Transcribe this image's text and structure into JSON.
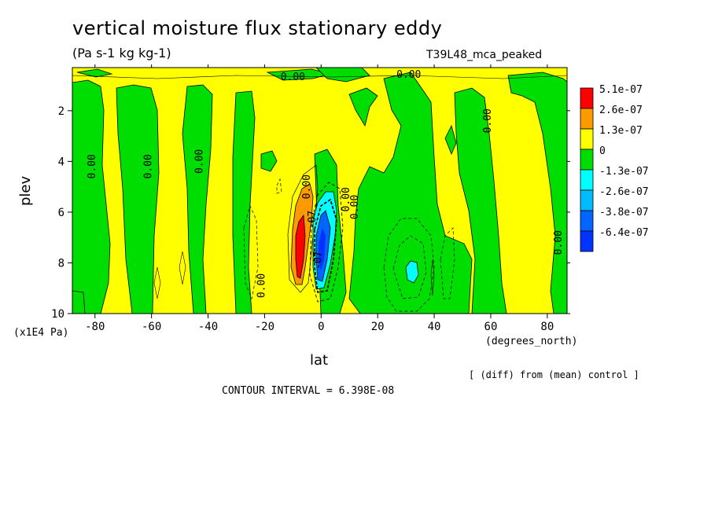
{
  "chart_data": {
    "type": "heatmap",
    "title": "vertical moisture flux stationary eddy",
    "units": "(Pa s-1 kg kg-1)",
    "model": "T39L48_mca_peaked",
    "xlabel": "lat",
    "ylabel": "plev",
    "x_unit_note": "(degrees_north)",
    "y_unit_note": "(x1E4 Pa)",
    "xlim": [
      -88,
      87
    ],
    "ylim": [
      0.3,
      10
    ],
    "y_inverted": true,
    "x_ticks": [
      -80,
      -60,
      -40,
      -20,
      0,
      20,
      40,
      60,
      80
    ],
    "y_ticks": [
      2,
      4,
      6,
      8,
      10
    ],
    "colorbar": {
      "levels": [
        "5.1e-07",
        "2.6e-07",
        "1.3e-07",
        "0",
        "-1.3e-07",
        "-2.6e-07",
        "-3.8e-07",
        "-6.4e-07"
      ],
      "colors": [
        "#ff0000",
        "#ff9900",
        "#ffff00",
        "#00dd00",
        "#00ffff",
        "#00bbff",
        "#0066ff",
        "#0033ff"
      ]
    },
    "contour_labels": [
      "0.00",
      "0.00",
      "0.00",
      "0.00",
      "0.00",
      "0.00",
      "0.00",
      "0.00",
      "0.00",
      "0.00",
      "0.00",
      "-07",
      "-07"
    ],
    "diff_note": "[ (diff) from (mean) control ]",
    "contour_interval": "CONTOUR INTERVAL = 6.398E-08"
  }
}
